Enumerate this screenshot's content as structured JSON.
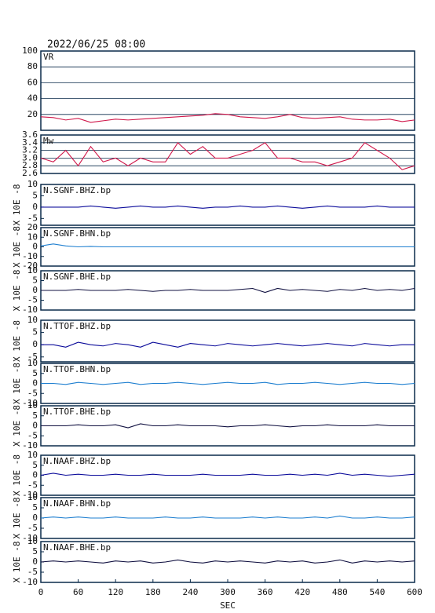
{
  "chart_data": [
    {
      "type": "line",
      "title": "2022/06/25 08:00",
      "label": "VR",
      "color": "#d0174a",
      "grid": true,
      "x": [
        0,
        20,
        40,
        60,
        80,
        100,
        120,
        140,
        160,
        180,
        200,
        220,
        240,
        260,
        280,
        300,
        320,
        340,
        360,
        380,
        400,
        420,
        440,
        460,
        480,
        500,
        520,
        540,
        560,
        580,
        600
      ],
      "values": [
        17,
        16,
        13,
        15,
        10,
        12,
        14,
        13,
        14,
        15,
        16,
        17,
        18,
        19,
        21,
        20,
        17,
        16,
        15,
        17,
        20,
        16,
        15,
        16,
        17,
        14,
        13,
        13,
        14,
        11,
        13
      ],
      "xlim": [
        0,
        600
      ],
      "ylim": [
        0,
        100
      ],
      "yticks": [
        20,
        40,
        60,
        80,
        100
      ]
    },
    {
      "type": "line",
      "label": "Mw",
      "color": "#d0174a",
      "grid": true,
      "x": [
        0,
        20,
        40,
        60,
        80,
        100,
        120,
        140,
        160,
        180,
        200,
        220,
        240,
        260,
        280,
        300,
        320,
        340,
        360,
        380,
        400,
        420,
        440,
        460,
        480,
        500,
        520,
        540,
        560,
        580,
        600
      ],
      "values": [
        3.0,
        2.9,
        3.2,
        2.8,
        3.3,
        2.9,
        3.0,
        2.8,
        3.0,
        2.9,
        2.9,
        3.4,
        3.1,
        3.3,
        3.0,
        3.0,
        3.1,
        3.2,
        3.4,
        3.0,
        3.0,
        2.9,
        2.9,
        2.8,
        2.9,
        3.0,
        3.4,
        3.2,
        3.0,
        2.7,
        2.8
      ],
      "xlim": [
        0,
        600
      ],
      "ylim": [
        2.6,
        3.6
      ],
      "yticks": [
        {
          "value": 2.6,
          "label": "2.6"
        },
        {
          "value": 2.8,
          "label": "2.8"
        },
        {
          "value": 3,
          "label": "3.0"
        },
        {
          "value": 3.2,
          "label": "3.2"
        },
        {
          "value": 3.4,
          "label": "3.4"
        },
        {
          "value": 3.6,
          "label": "3.6"
        }
      ]
    },
    {
      "type": "line",
      "label": "N.SGNF.BHZ.bp",
      "ylabel": "X 10E -8",
      "color": "#0a0a9a",
      "grid": false,
      "x": [
        0,
        20,
        40,
        60,
        80,
        100,
        120,
        140,
        160,
        180,
        200,
        220,
        240,
        260,
        280,
        300,
        320,
        340,
        360,
        380,
        400,
        420,
        440,
        460,
        480,
        500,
        520,
        540,
        560,
        580,
        600
      ],
      "values": [
        0,
        0,
        0,
        0,
        0.5,
        0,
        -0.5,
        0,
        0.5,
        0,
        0,
        0.5,
        0,
        -0.5,
        0,
        0,
        0.5,
        0,
        0,
        0.5,
        0,
        -0.5,
        0,
        0.5,
        0,
        0,
        0,
        0.5,
        0,
        0,
        0
      ],
      "xlim": [
        0,
        600
      ],
      "ylim": [
        -8,
        10
      ],
      "yticks": [
        -5,
        0,
        5,
        10
      ]
    },
    {
      "type": "line",
      "label": "N.SGNF.BHN.bp",
      "ylabel": "X 10E -8",
      "color": "#1e7fd0",
      "grid": false,
      "x": [
        0,
        20,
        40,
        60,
        80,
        100,
        120,
        140,
        160,
        180,
        200,
        220,
        240,
        260,
        280,
        300,
        320,
        340,
        360,
        380,
        400,
        420,
        440,
        460,
        480,
        500,
        520,
        540,
        560,
        580,
        600
      ],
      "values": [
        1,
        3,
        1,
        0,
        0.5,
        0,
        0,
        0,
        0,
        0,
        0,
        0,
        0,
        0,
        0,
        0,
        0,
        0,
        0,
        0,
        0,
        0,
        0,
        0,
        0,
        0,
        0,
        0,
        0,
        0,
        0
      ],
      "xlim": [
        0,
        600
      ],
      "ylim": [
        -20,
        20
      ],
      "yticks": [
        -20,
        -10,
        0,
        10,
        20
      ]
    },
    {
      "type": "line",
      "label": "N.SGNF.BHE.bp",
      "ylabel": "X 10E -8",
      "color": "#101040",
      "grid": false,
      "x": [
        0,
        20,
        40,
        60,
        80,
        100,
        120,
        140,
        160,
        180,
        200,
        220,
        240,
        260,
        280,
        300,
        320,
        340,
        360,
        380,
        400,
        420,
        440,
        460,
        480,
        500,
        520,
        540,
        560,
        580,
        600
      ],
      "values": [
        0,
        0,
        0,
        0.5,
        0,
        0,
        0,
        0.5,
        0,
        -0.5,
        0,
        0,
        0.5,
        0,
        0,
        0,
        0.5,
        1,
        -1,
        1,
        0,
        0.5,
        0,
        -0.5,
        0.5,
        0,
        1,
        0,
        0.5,
        0,
        1
      ],
      "xlim": [
        0,
        600
      ],
      "ylim": [
        -10,
        10
      ],
      "yticks": [
        -10,
        -5,
        0,
        5,
        10
      ]
    },
    {
      "type": "line",
      "label": "N.TTOF.BHZ.bp",
      "ylabel": "X 10E -8",
      "color": "#0a0a9a",
      "grid": false,
      "x": [
        0,
        20,
        40,
        60,
        80,
        100,
        120,
        140,
        160,
        180,
        200,
        220,
        240,
        260,
        280,
        300,
        320,
        340,
        360,
        380,
        400,
        420,
        440,
        460,
        480,
        500,
        520,
        540,
        560,
        580,
        600
      ],
      "values": [
        0,
        0,
        -1,
        1,
        0,
        -0.5,
        0.5,
        0,
        -1,
        1,
        0,
        -1,
        0.5,
        0,
        -0.5,
        0.5,
        0,
        -0.5,
        0,
        0.5,
        0,
        -0.5,
        0,
        0.5,
        0,
        -0.5,
        0.5,
        0,
        -0.5,
        0,
        0
      ],
      "xlim": [
        0,
        600
      ],
      "ylim": [
        -7,
        10
      ],
      "yticks": [
        -5,
        0,
        5,
        10
      ]
    },
    {
      "type": "line",
      "label": "N.TTOF.BHN.bp",
      "ylabel": "X 10E -8",
      "color": "#1e7fd0",
      "grid": false,
      "x": [
        0,
        20,
        40,
        60,
        80,
        100,
        120,
        140,
        160,
        180,
        200,
        220,
        240,
        260,
        280,
        300,
        320,
        340,
        360,
        380,
        400,
        420,
        440,
        460,
        480,
        500,
        520,
        540,
        560,
        580,
        600
      ],
      "values": [
        0,
        0,
        -0.5,
        0.5,
        0,
        -0.5,
        0,
        0.5,
        -0.5,
        0,
        0,
        0.5,
        0,
        -0.5,
        0,
        0.5,
        0,
        0,
        0.5,
        -0.5,
        0,
        0,
        0.5,
        0,
        -0.5,
        0,
        0.5,
        0,
        0,
        -0.5,
        0
      ],
      "xlim": [
        0,
        600
      ],
      "ylim": [
        -10,
        10
      ],
      "yticks": [
        -10,
        -5,
        0,
        5,
        10
      ]
    },
    {
      "type": "line",
      "label": "N.TTOF.BHE.bp",
      "ylabel": "X 10E -8",
      "color": "#101040",
      "grid": false,
      "x": [
        0,
        20,
        40,
        60,
        80,
        100,
        120,
        140,
        160,
        180,
        200,
        220,
        240,
        260,
        280,
        300,
        320,
        340,
        360,
        380,
        400,
        420,
        440,
        460,
        480,
        500,
        520,
        540,
        560,
        580,
        600
      ],
      "values": [
        0,
        0,
        0,
        0.5,
        0,
        0,
        0.5,
        -1,
        1,
        0,
        0,
        0.5,
        0,
        0,
        0,
        -0.5,
        0,
        0,
        0.5,
        0,
        -0.5,
        0,
        0,
        0.5,
        0,
        0,
        0,
        0.5,
        0,
        0,
        0
      ],
      "xlim": [
        0,
        600
      ],
      "ylim": [
        -10,
        10
      ],
      "yticks": [
        -10,
        -5,
        0,
        5,
        10
      ]
    },
    {
      "type": "line",
      "label": "N.NAAF.BHZ.bp",
      "ylabel": "X 10E -8",
      "color": "#0a0a9a",
      "grid": false,
      "x": [
        0,
        20,
        40,
        60,
        80,
        100,
        120,
        140,
        160,
        180,
        200,
        220,
        240,
        260,
        280,
        300,
        320,
        340,
        360,
        380,
        400,
        420,
        440,
        460,
        480,
        500,
        520,
        540,
        560,
        580,
        600
      ],
      "values": [
        0,
        1,
        0,
        0.5,
        0,
        0,
        0.5,
        0,
        0,
        0.5,
        0,
        0,
        0,
        0.5,
        0,
        0,
        0,
        0.5,
        0,
        0,
        0.5,
        0,
        0.5,
        0,
        1,
        0,
        0.5,
        0,
        -0.5,
        0,
        0.5
      ],
      "xlim": [
        0,
        600
      ],
      "ylim": [
        -10,
        10
      ],
      "yticks": [
        -10,
        -5,
        0,
        5,
        10
      ]
    },
    {
      "type": "line",
      "label": "N.NAAF.BHN.bp",
      "ylabel": "X 10E -8",
      "color": "#1e7fd0",
      "grid": false,
      "x": [
        0,
        20,
        40,
        60,
        80,
        100,
        120,
        140,
        160,
        180,
        200,
        220,
        240,
        260,
        280,
        300,
        320,
        340,
        360,
        380,
        400,
        420,
        440,
        460,
        480,
        500,
        520,
        540,
        560,
        580,
        600
      ],
      "values": [
        0,
        0.5,
        0,
        0.5,
        0,
        0,
        0.5,
        0,
        0,
        0,
        0.5,
        0,
        0,
        0.5,
        0,
        0,
        0,
        0.5,
        0,
        0.5,
        0,
        0,
        0.5,
        0,
        1,
        0,
        0,
        0.5,
        0,
        0,
        0.5
      ],
      "xlim": [
        0,
        600
      ],
      "ylim": [
        -10,
        10
      ],
      "yticks": [
        -10,
        -5,
        0,
        5,
        10
      ]
    },
    {
      "type": "line",
      "label": "N.NAAF.BHE.bp",
      "ylabel": "X 10E -8",
      "color": "#101040",
      "grid": false,
      "x": [
        0,
        20,
        40,
        60,
        80,
        100,
        120,
        140,
        160,
        180,
        200,
        220,
        240,
        260,
        280,
        300,
        320,
        340,
        360,
        380,
        400,
        420,
        440,
        460,
        480,
        500,
        520,
        540,
        560,
        580,
        600
      ],
      "values": [
        0,
        0.5,
        0,
        0.5,
        0,
        -0.5,
        0.5,
        0,
        0.5,
        -0.5,
        0,
        1,
        0,
        -0.5,
        0.5,
        0,
        0.5,
        0,
        -0.5,
        0.5,
        0,
        0.5,
        -0.5,
        0,
        1,
        -0.5,
        0.5,
        0,
        0.5,
        0,
        0.5
      ],
      "xlim": [
        0,
        600
      ],
      "ylim": [
        -10,
        10
      ],
      "yticks": [
        -10,
        -5,
        0,
        5,
        10
      ],
      "xticks": [
        0,
        60,
        120,
        180,
        240,
        300,
        360,
        420,
        480,
        540,
        600
      ],
      "xlabel": "SEC"
    }
  ]
}
